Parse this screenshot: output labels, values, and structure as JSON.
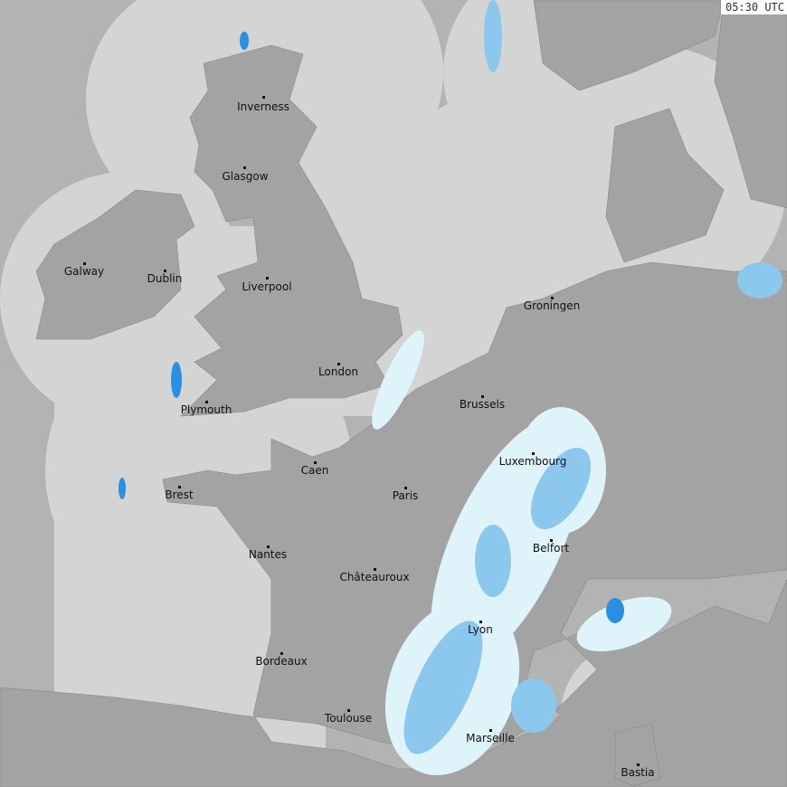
{
  "timestamp": "05:30 UTC",
  "colors": {
    "outside_coverage": "#b3b3b3",
    "coverage_sea": "#d4d4d4",
    "land": "#a3a3a3",
    "rain_light": "#dff3fb",
    "rain_medium": "#8cc8ee",
    "rain_heavy": "#2a8fe0"
  },
  "cities": [
    "Inverness",
    "Glasgow",
    "Galway",
    "Dublin",
    "Liverpool",
    "London",
    "Plymouth",
    "Groningen",
    "Brussels",
    "Luxembourg",
    "Caen",
    "Paris",
    "Brest",
    "Belfort",
    "Nantes",
    "Châteauroux",
    "Lyon",
    "Bordeaux",
    "Toulouse",
    "Marseille",
    "Bastia"
  ]
}
